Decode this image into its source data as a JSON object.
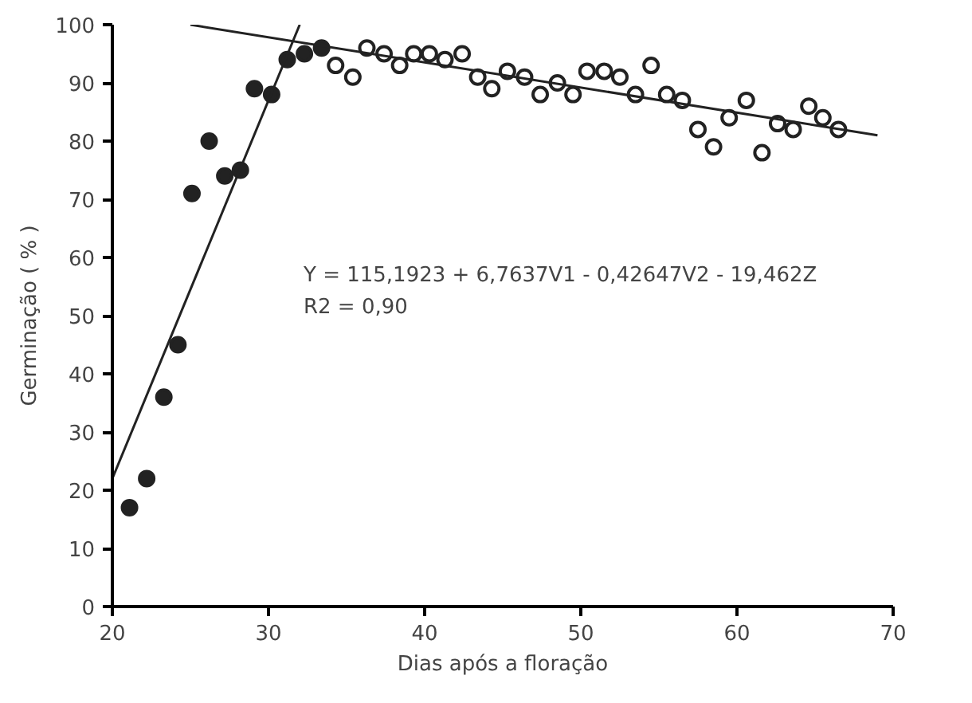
{
  "chart_data": {
    "type": "scatter",
    "xlabel": "Dias após a floração",
    "ylabel": "Germinação ( % )",
    "xlim": [
      20,
      70
    ],
    "ylim": [
      0,
      100
    ],
    "xticks": [
      20,
      30,
      40,
      50,
      60,
      70
    ],
    "yticks": [
      0,
      10,
      20,
      30,
      40,
      50,
      60,
      70,
      80,
      90,
      100
    ],
    "grid": false,
    "annotations": [
      "Y = 115,1923 + 6,7637V1 - 0,42647V2 - 19,462Z",
      "R2 = 0,90"
    ],
    "series": [
      {
        "marker": "circle",
        "color": "#222222",
        "x": [
          21.1,
          22.2,
          23.3,
          24.2,
          25.1,
          26.2,
          27.2,
          28.2,
          29.1,
          30.2,
          31.2,
          32.3,
          33.4
        ],
        "values": [
          17,
          22,
          36,
          45,
          71,
          80,
          74,
          75,
          89,
          88,
          94,
          95,
          96
        ]
      },
      {
        "marker": "circle",
        "color": "#ffffff",
        "x": [
          34.3,
          35.4,
          36.3,
          37.4,
          38.4,
          39.3,
          40.3,
          41.3,
          42.4,
          43.4,
          44.3,
          45.3,
          46.4,
          47.4,
          48.5,
          49.5,
          50.4,
          51.5,
          52.5,
          53.5,
          54.5,
          55.5,
          56.5,
          57.5,
          58.5,
          59.5,
          60.6,
          61.6,
          62.6,
          63.6,
          64.6,
          65.5,
          66.5
        ],
        "values": [
          93,
          91,
          96,
          95,
          93,
          95,
          95,
          94,
          95,
          91,
          89,
          92,
          91,
          88,
          90,
          88,
          92,
          92,
          91,
          88,
          93,
          88,
          87,
          82,
          79,
          84,
          87,
          78,
          83,
          82,
          86,
          84,
          82
        ]
      },
      {
        "type": "line",
        "color": "#222222",
        "x": [
          20,
          32
        ],
        "values": [
          22,
          100
        ]
      },
      {
        "type": "line",
        "color": "#222222",
        "x": [
          25,
          69
        ],
        "values": [
          100,
          81
        ]
      }
    ]
  }
}
